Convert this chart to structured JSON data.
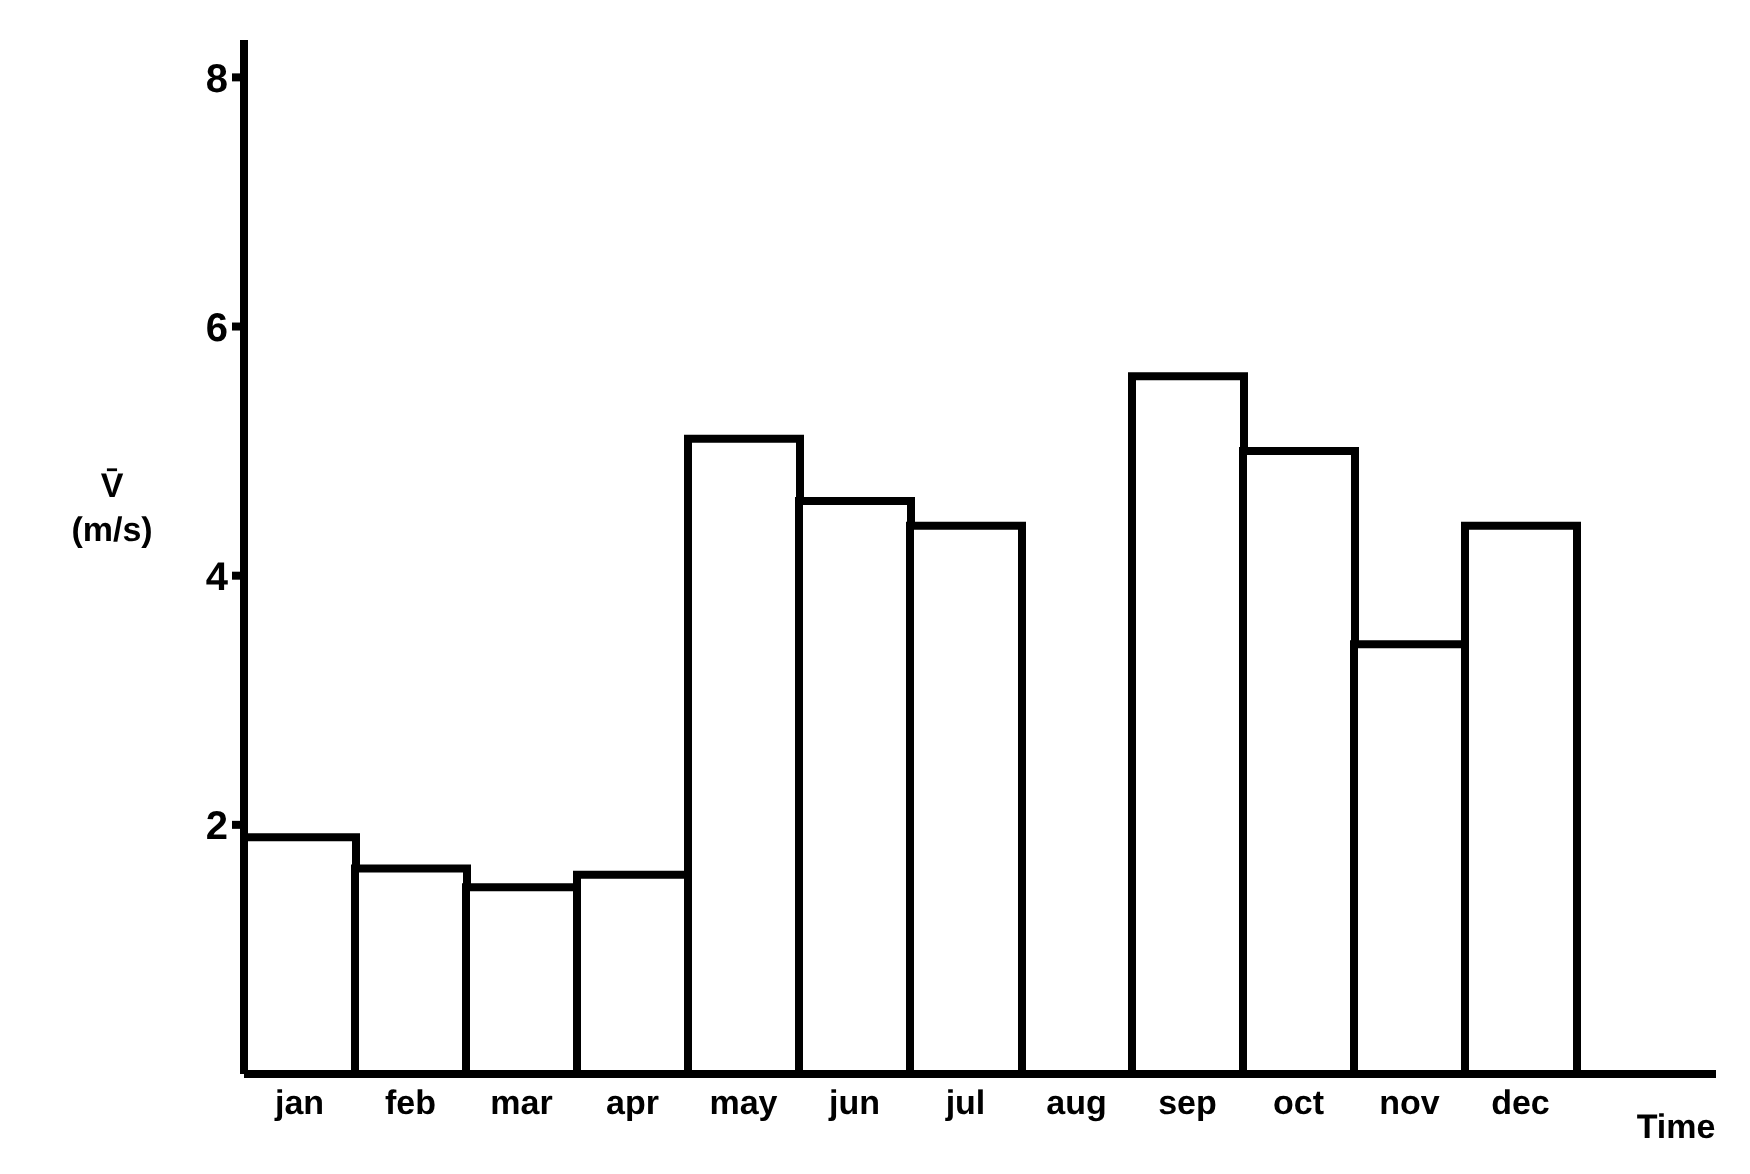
{
  "chart_data": {
    "type": "bar",
    "xlabel": "Time",
    "ylabel": "V̄\n(m/s)",
    "categories": [
      "jan",
      "feb",
      "mar",
      "apr",
      "may",
      "jun",
      "jul",
      "aug",
      "sep",
      "oct",
      "nov",
      "dec"
    ],
    "values": [
      1.9,
      1.65,
      1.5,
      1.6,
      5.1,
      4.6,
      4.4,
      null,
      5.6,
      5.0,
      3.45,
      4.4
    ],
    "color": "#ffffff",
    "ylim": [
      0,
      8.3
    ],
    "yticks": [
      2,
      4,
      6,
      8
    ],
    "grid": false,
    "legend": false
  }
}
